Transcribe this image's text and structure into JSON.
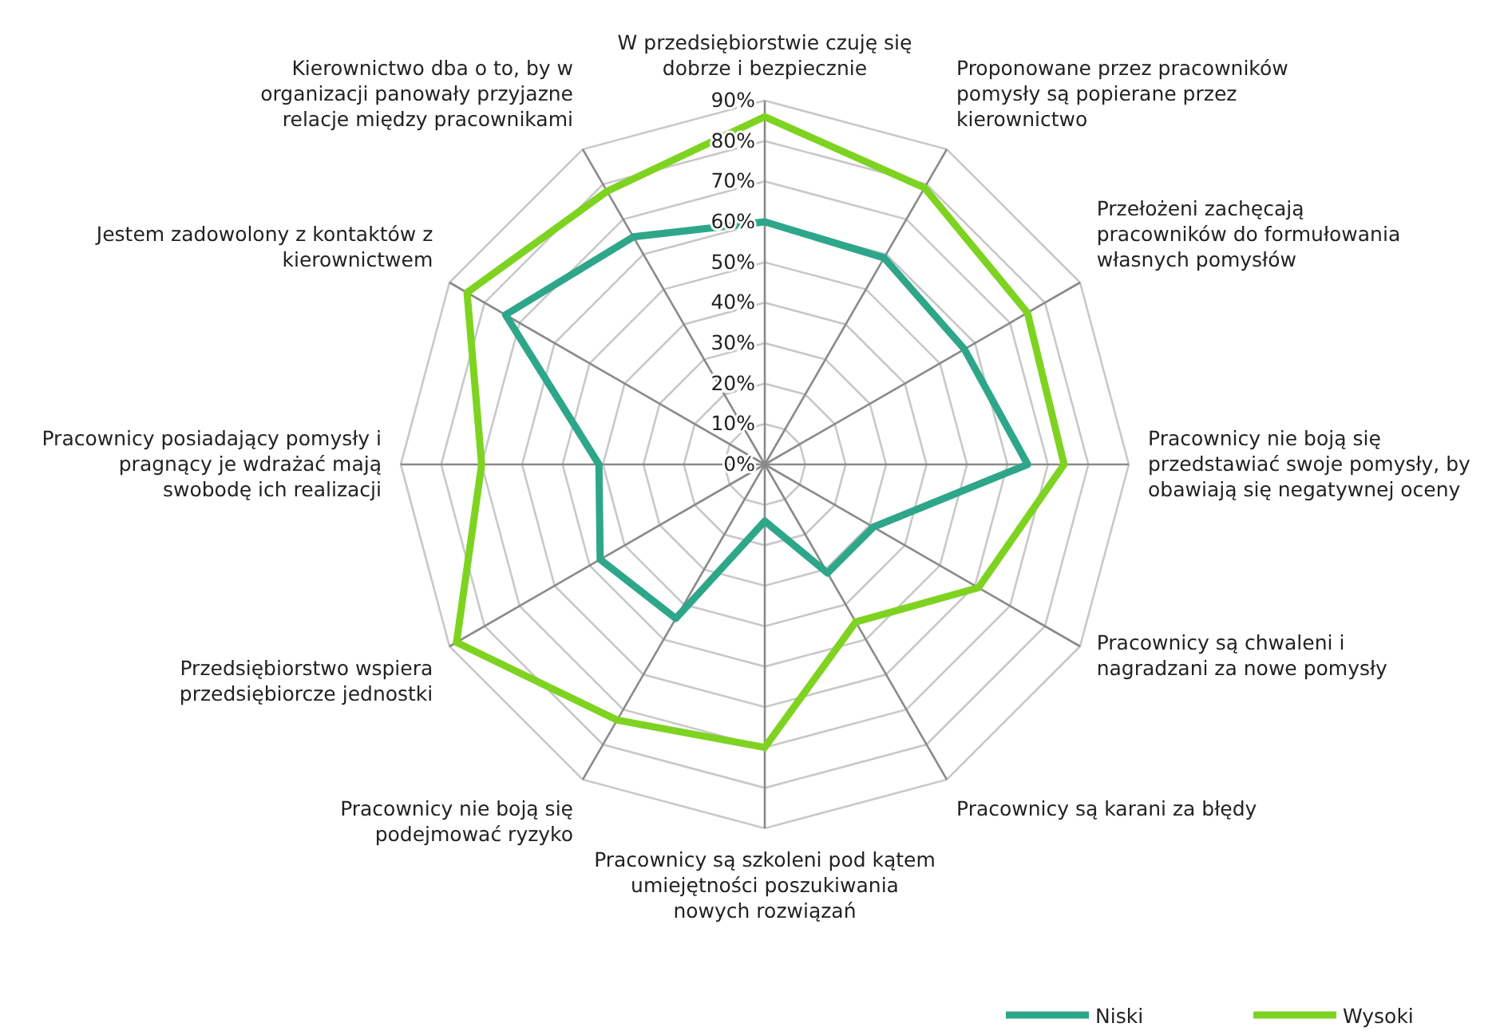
{
  "chart_data": {
    "type": "radar",
    "categories": [
      "W przedsiębiorstwie czuję się dobrze i bezpiecznie",
      "Proponowane przez pracowników pomysły są popierane przez kierownictwo",
      "Przełożeni zachęcają pracowników do formułowania własnych pomysłów",
      "Pracownicy nie boją się przedstawiać swoje pomysły, by obawiają się negatywnej oceny",
      "Pracownicy są chwaleni i nagradzani za nowe pomysły",
      "Pracownicy są karani za błędy",
      "Pracownicy są szkoleni pod kątem umiejętności poszukiwania nowych rozwiązań",
      "Pracownicy nie boją się podejmować ryzyko",
      "Przedsiębiorstwo wspiera przedsiębiorcze jednostki",
      "Pracownicy posiadający pomysły i pragnący je wdrażać mają swobodę ich realizacji",
      "Jestem zadowolony z kontaktów z kierownictwem",
      "Kierownictwo dba o to, by w organizacji panowały przyjazne relacje między pracownikami"
    ],
    "series": [
      {
        "name": "Niski",
        "color": "#2ea68a",
        "values": [
          60,
          59,
          57,
          65,
          31,
          31,
          14,
          44,
          47,
          41,
          74,
          65
        ]
      },
      {
        "name": "Wysoki",
        "color": "#7ed321",
        "values": [
          86,
          79,
          75,
          74,
          61,
          45,
          70,
          73,
          88,
          70,
          85,
          78
        ]
      }
    ],
    "ylim": [
      0,
      90
    ],
    "yticks": [
      {
        "value": 0,
        "label": "0%"
      },
      {
        "value": 10,
        "label": "10%"
      },
      {
        "value": 20,
        "label": "20%"
      },
      {
        "value": 30,
        "label": "30%"
      },
      {
        "value": 40,
        "label": "40%"
      },
      {
        "value": 50,
        "label": "50%"
      },
      {
        "value": 60,
        "label": "60%"
      },
      {
        "value": 70,
        "label": "70%"
      },
      {
        "value": 80,
        "label": "80%"
      },
      {
        "value": 90,
        "label": "90%"
      }
    ],
    "grid": true,
    "legend": "bottom right",
    "marker": "none",
    "line_style": "solid"
  }
}
